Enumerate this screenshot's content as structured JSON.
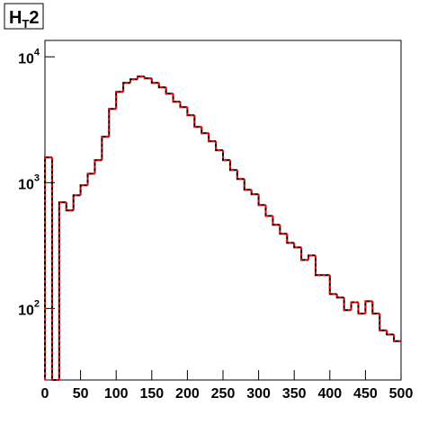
{
  "chart_data": {
    "type": "histogram",
    "title": "H",
    "title_subscript": "T",
    "title_suffix": "2",
    "bins": [
      0,
      10,
      20,
      30,
      40,
      50,
      60,
      70,
      80,
      90,
      100,
      110,
      120,
      130,
      140,
      150,
      160,
      170,
      180,
      190,
      200,
      210,
      220,
      230,
      240,
      250,
      260,
      270,
      280,
      290,
      300,
      310,
      320,
      330,
      340,
      350,
      360,
      370,
      380,
      390,
      400,
      410,
      420,
      430,
      440,
      450,
      460,
      470,
      480,
      490,
      500
    ],
    "series": [
      {
        "color": "#000000",
        "dash": "solid",
        "values": [
          1585,
          0,
          697,
          601,
          794,
          952,
          1178,
          1510,
          2313,
          3855,
          5265,
          6209,
          6630,
          6965,
          6740,
          6209,
          5720,
          5096,
          4394,
          3981,
          3434,
          2773,
          2470,
          2131,
          1808,
          1510,
          1259,
          1068,
          877,
          808,
          663,
          544,
          462,
          392,
          332,
          306,
          243,
          264,
          184,
          184,
          130,
          122,
          97,
          112,
          91,
          114,
          91,
          67,
          62,
          55
        ]
      },
      {
        "color": "#ff0000",
        "dash": "dashed",
        "values": [
          1585,
          0,
          697,
          601,
          794,
          952,
          1178,
          1510,
          2313,
          3855,
          5265,
          6209,
          6630,
          6965,
          6740,
          6209,
          5720,
          5096,
          4394,
          3981,
          3434,
          2773,
          2470,
          2131,
          1808,
          1510,
          1259,
          1068,
          877,
          808,
          663,
          544,
          462,
          392,
          332,
          306,
          243,
          264,
          184,
          184,
          130,
          122,
          97,
          112,
          91,
          114,
          91,
          67,
          62,
          55
        ]
      }
    ],
    "xlim": [
      0,
      500
    ],
    "xticks": [
      0,
      50,
      100,
      150,
      200,
      250,
      300,
      350,
      400,
      450,
      500
    ],
    "ylim": [
      27,
      13500
    ],
    "log_y": true,
    "yticks": [
      {
        "value": 100,
        "label": "10^2"
      },
      {
        "value": 1000,
        "label": "10^3"
      },
      {
        "value": 10000,
        "label": "10^4"
      }
    ],
    "grid": false
  }
}
